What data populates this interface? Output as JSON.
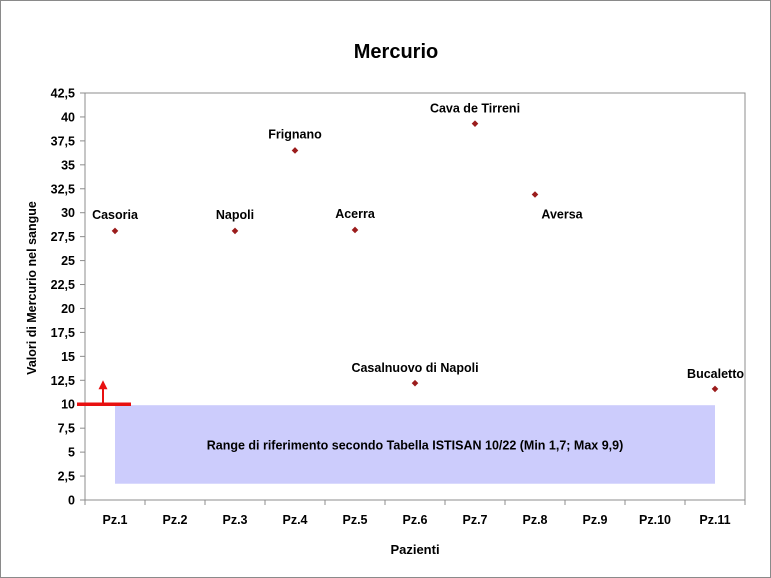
{
  "chart_data": {
    "type": "scatter",
    "title": "Mercurio",
    "xlabel": "Pazienti",
    "ylabel": "Valori di Mercurio nel sangue",
    "categories": [
      "Pz.1",
      "Pz.2",
      "Pz.3",
      "Pz.4",
      "Pz.5",
      "Pz.6",
      "Pz.7",
      "Pz.8",
      "Pz.9",
      "Pz.10",
      "Pz.11"
    ],
    "ylim": [
      0,
      42.5
    ],
    "y_ticks": [
      "0",
      "2,5",
      "5",
      "7,5",
      "10",
      "12,5",
      "15",
      "17,5",
      "20",
      "22,5",
      "25",
      "27,5",
      "30",
      "32,5",
      "35",
      "37,5",
      "40",
      "42,5"
    ],
    "grid": false,
    "points": [
      {
        "category": "Pz.1",
        "value": 28.1,
        "label": "Casoria"
      },
      {
        "category": "Pz.3",
        "value": 28.1,
        "label": "Napoli"
      },
      {
        "category": "Pz.4",
        "value": 36.5,
        "label": "Frignano"
      },
      {
        "category": "Pz.5",
        "value": 28.2,
        "label": "Acerra"
      },
      {
        "category": "Pz.6",
        "value": 12.2,
        "label": "Casalnuovo di Napoli"
      },
      {
        "category": "Pz.7",
        "value": 39.3,
        "label": "Cava de Tirreni"
      },
      {
        "category": "Pz.8",
        "value": 31.9,
        "label": "Aversa"
      },
      {
        "category": "Pz.11",
        "value": 11.6,
        "label": "Bucaletto"
      }
    ],
    "reference_range": {
      "min": 1.7,
      "max": 9.9,
      "label": "Range di riferimento secondo Tabella ISTISAN 10/22 (Min 1,7; Max 9,9)",
      "fill_color": "#ccccfc"
    },
    "threshold_marker": {
      "value": 10,
      "color": "#e81010"
    },
    "marker_color": "#9b1c1c"
  }
}
